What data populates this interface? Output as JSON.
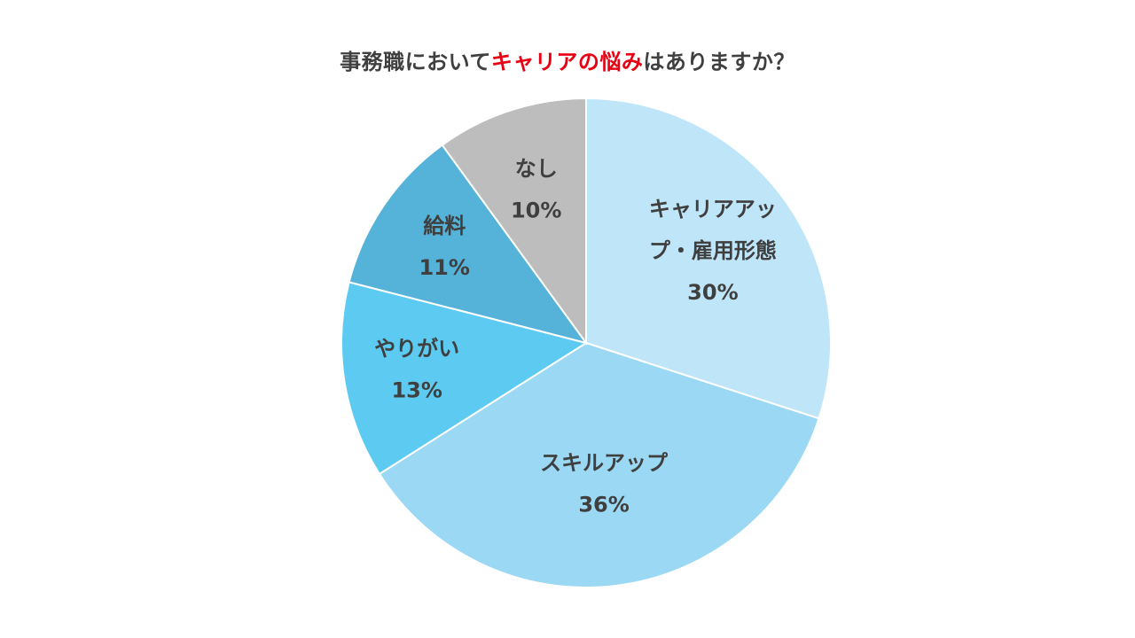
{
  "chart_data": {
    "type": "pie",
    "title": {
      "prefix": "事務職において",
      "highlight": "キャリアの悩み",
      "suffix": "はありますか？"
    },
    "start_angle_deg": 0,
    "direction": "clockwise",
    "slices": [
      {
        "label_lines": [
          "キャリアアッ",
          "プ・雇用形態"
        ],
        "value": 30,
        "value_label": "30%",
        "color": "#bfe5f8"
      },
      {
        "label_lines": [
          "スキルアップ"
        ],
        "value": 36,
        "value_label": "36%",
        "color": "#9bd8f3"
      },
      {
        "label_lines": [
          "やりがい"
        ],
        "value": 13,
        "value_label": "13%",
        "color": "#5dcbf1"
      },
      {
        "label_lines": [
          "給料"
        ],
        "value": 11,
        "value_label": "11%",
        "color": "#55b2d8"
      },
      {
        "label_lines": [
          "なし"
        ],
        "value": 10,
        "value_label": "10%",
        "color": "#bdbdbd"
      }
    ],
    "legend": "none",
    "highlight_color": "#e60012"
  }
}
